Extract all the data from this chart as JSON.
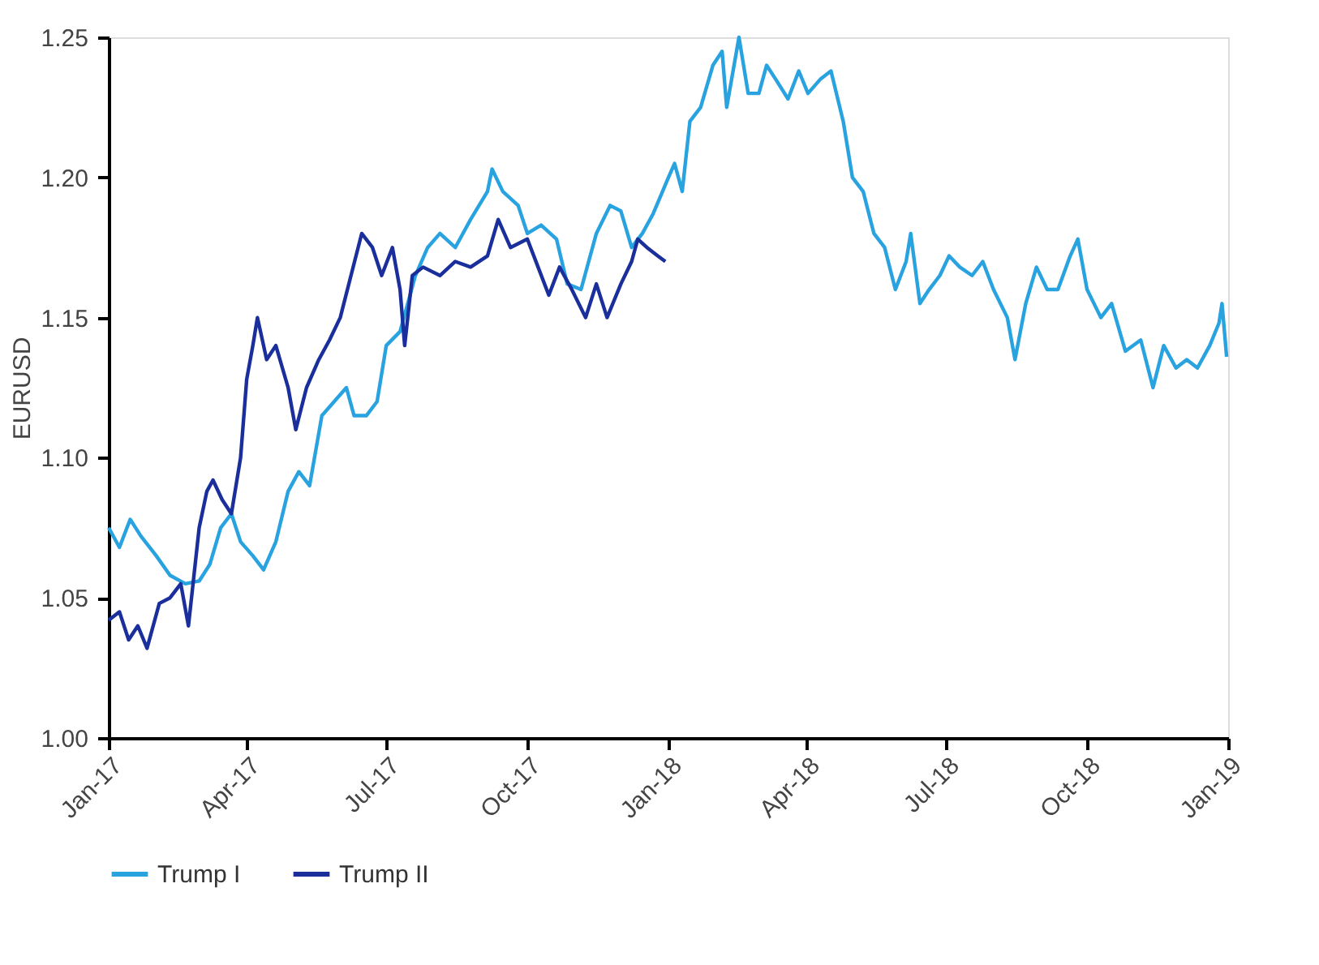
{
  "chart_data": {
    "type": "line",
    "ylabel": "EURUSD",
    "xlim": [
      "2017-01-01",
      "2019-01-01"
    ],
    "xticks": [
      {
        "value": "2017-01-01",
        "label": "Jan-17"
      },
      {
        "value": "2017-04-01",
        "label": "Apr-17"
      },
      {
        "value": "2017-07-01",
        "label": "Jul-17"
      },
      {
        "value": "2017-10-01",
        "label": "Oct-17"
      },
      {
        "value": "2018-01-01",
        "label": "Jan-18"
      },
      {
        "value": "2018-04-01",
        "label": "Apr-18"
      },
      {
        "value": "2018-07-01",
        "label": "Jul-18"
      },
      {
        "value": "2018-10-01",
        "label": "Oct-18"
      },
      {
        "value": "2019-01-01",
        "label": "Jan-19"
      }
    ],
    "ylim": [
      1.0,
      1.25
    ],
    "yticks": [
      {
        "value": 1.0,
        "label": "1.00"
      },
      1.05,
      {
        "value": 1.1,
        "label": "1.10"
      },
      1.15,
      {
        "value": 1.2,
        "label": "1.20"
      },
      1.25
    ],
    "grid": false,
    "legend": "bottom",
    "marker": "none",
    "line_style": "solid",
    "series": [
      {
        "name": "Trump I",
        "color": "#29a3e0",
        "x": [
          "2017-01-01",
          "2017-01-08",
          "2017-01-15",
          "2017-01-22",
          "2017-02-01",
          "2017-02-10",
          "2017-02-20",
          "2017-03-01",
          "2017-03-08",
          "2017-03-15",
          "2017-03-22",
          "2017-03-28",
          "2017-04-05",
          "2017-04-12",
          "2017-04-20",
          "2017-04-28",
          "2017-05-05",
          "2017-05-12",
          "2017-05-20",
          "2017-05-28",
          "2017-06-05",
          "2017-06-10",
          "2017-06-18",
          "2017-06-25",
          "2017-07-01",
          "2017-07-10",
          "2017-07-20",
          "2017-07-28",
          "2017-08-05",
          "2017-08-15",
          "2017-08-25",
          "2017-09-05",
          "2017-09-08",
          "2017-09-15",
          "2017-09-25",
          "2017-10-01",
          "2017-10-10",
          "2017-10-20",
          "2017-10-27",
          "2017-11-05",
          "2017-11-15",
          "2017-11-24",
          "2017-12-01",
          "2017-12-08",
          "2017-12-15",
          "2017-12-22",
          "2018-01-01",
          "2018-01-05",
          "2018-01-10",
          "2018-01-15",
          "2018-01-22",
          "2018-01-30",
          "2018-02-05",
          "2018-02-08",
          "2018-02-16",
          "2018-02-22",
          "2018-03-01",
          "2018-03-06",
          "2018-03-12",
          "2018-03-20",
          "2018-03-27",
          "2018-04-02",
          "2018-04-10",
          "2018-04-17",
          "2018-04-25",
          "2018-05-01",
          "2018-05-08",
          "2018-05-15",
          "2018-05-22",
          "2018-05-29",
          "2018-06-05",
          "2018-06-08",
          "2018-06-14",
          "2018-06-20",
          "2018-06-27",
          "2018-07-03",
          "2018-07-10",
          "2018-07-18",
          "2018-07-25",
          "2018-08-01",
          "2018-08-10",
          "2018-08-15",
          "2018-08-22",
          "2018-08-29",
          "2018-09-05",
          "2018-09-12",
          "2018-09-20",
          "2018-09-25",
          "2018-10-01",
          "2018-10-10",
          "2018-10-17",
          "2018-10-26",
          "2018-11-05",
          "2018-11-13",
          "2018-11-20",
          "2018-11-28",
          "2018-12-05",
          "2018-12-12",
          "2018-12-20",
          "2018-12-26",
          "2018-12-28",
          "2018-12-31"
        ],
        "values": [
          1.075,
          1.068,
          1.078,
          1.072,
          1.065,
          1.058,
          1.055,
          1.056,
          1.062,
          1.075,
          1.08,
          1.07,
          1.065,
          1.06,
          1.07,
          1.088,
          1.095,
          1.09,
          1.115,
          1.12,
          1.125,
          1.115,
          1.115,
          1.12,
          1.14,
          1.145,
          1.165,
          1.175,
          1.18,
          1.175,
          1.185,
          1.195,
          1.203,
          1.195,
          1.19,
          1.18,
          1.183,
          1.178,
          1.162,
          1.16,
          1.18,
          1.19,
          1.188,
          1.175,
          1.18,
          1.187,
          1.2,
          1.205,
          1.195,
          1.22,
          1.225,
          1.24,
          1.245,
          1.225,
          1.25,
          1.23,
          1.23,
          1.24,
          1.235,
          1.228,
          1.238,
          1.23,
          1.235,
          1.238,
          1.22,
          1.2,
          1.195,
          1.18,
          1.175,
          1.16,
          1.17,
          1.18,
          1.155,
          1.16,
          1.165,
          1.172,
          1.168,
          1.165,
          1.17,
          1.16,
          1.15,
          1.135,
          1.155,
          1.168,
          1.16,
          1.16,
          1.172,
          1.178,
          1.16,
          1.15,
          1.155,
          1.138,
          1.142,
          1.125,
          1.14,
          1.132,
          1.135,
          1.132,
          1.14,
          1.148,
          1.155,
          1.136
        ]
      },
      {
        "name": "Trump II",
        "color": "#1a2f9c",
        "x": [
          "2017-01-01",
          "2017-01-08",
          "2017-01-14",
          "2017-01-20",
          "2017-01-26",
          "2017-02-03",
          "2017-02-10",
          "2017-02-17",
          "2017-02-22",
          "2017-03-01",
          "2017-03-06",
          "2017-03-10",
          "2017-03-16",
          "2017-03-22",
          "2017-03-28",
          "2017-04-01",
          "2017-04-05",
          "2017-04-08",
          "2017-04-14",
          "2017-04-20",
          "2017-04-28",
          "2017-05-03",
          "2017-05-10",
          "2017-05-18",
          "2017-05-25",
          "2017-06-01",
          "2017-06-08",
          "2017-06-15",
          "2017-06-22",
          "2017-06-28",
          "2017-07-05",
          "2017-07-10",
          "2017-07-13",
          "2017-07-18",
          "2017-07-25",
          "2017-08-05",
          "2017-08-15",
          "2017-08-25",
          "2017-09-05",
          "2017-09-12",
          "2017-09-20",
          "2017-10-01",
          "2017-10-08",
          "2017-10-15",
          "2017-10-22",
          "2017-10-30",
          "2017-11-08",
          "2017-11-15",
          "2017-11-22",
          "2017-12-01",
          "2017-12-08",
          "2017-12-12",
          "2017-12-18",
          "2017-12-25",
          "2017-12-30"
        ],
        "values": [
          1.042,
          1.045,
          1.035,
          1.04,
          1.032,
          1.048,
          1.05,
          1.055,
          1.04,
          1.075,
          1.088,
          1.092,
          1.085,
          1.08,
          1.1,
          1.128,
          1.14,
          1.15,
          1.135,
          1.14,
          1.125,
          1.11,
          1.125,
          1.135,
          1.142,
          1.15,
          1.165,
          1.18,
          1.175,
          1.165,
          1.175,
          1.16,
          1.14,
          1.165,
          1.168,
          1.165,
          1.17,
          1.168,
          1.172,
          1.185,
          1.175,
          1.178,
          1.168,
          1.158,
          1.168,
          1.16,
          1.15,
          1.162,
          1.15,
          1.162,
          1.17,
          1.178,
          1.175,
          1.172,
          1.17
        ]
      }
    ]
  }
}
